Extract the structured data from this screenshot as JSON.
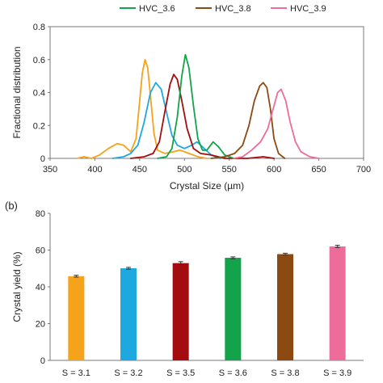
{
  "chart_data": [
    {
      "type": "line",
      "panel_label": "",
      "xlabel": "Crystal Size (µm)",
      "ylabel": "Fractional distribution",
      "xlim": [
        350,
        700
      ],
      "ylim": [
        0,
        0.8
      ],
      "x_ticks": [
        "350",
        "400",
        "450",
        "500",
        "550",
        "600",
        "650",
        "700"
      ],
      "y_ticks": [
        "0",
        "0.2",
        "0.4",
        "0.6",
        "0.8"
      ],
      "legend_position": "top",
      "grid": false,
      "series": [
        {
          "name": "",
          "color": "#f5a31a",
          "points": [
            [
              380,
              0
            ],
            [
              388,
              0.01
            ],
            [
              396,
              0
            ],
            [
              405,
              0.02
            ],
            [
              415,
              0.06
            ],
            [
              425,
              0.09
            ],
            [
              432,
              0.08
            ],
            [
              440,
              0.04
            ],
            [
              446,
              0.12
            ],
            [
              450,
              0.35
            ],
            [
              453,
              0.52
            ],
            [
              456,
              0.6
            ],
            [
              459,
              0.55
            ],
            [
              462,
              0.38
            ],
            [
              466,
              0.15
            ],
            [
              470,
              0.05
            ],
            [
              478,
              0.03
            ],
            [
              488,
              0.04
            ],
            [
              495,
              0.05
            ],
            [
              505,
              0.03
            ],
            [
              515,
              0.01
            ],
            [
              525,
              0
            ]
          ]
        },
        {
          "name": "",
          "color": "#1ea8e0",
          "points": [
            [
              420,
              0
            ],
            [
              432,
              0.01
            ],
            [
              440,
              0.03
            ],
            [
              448,
              0.08
            ],
            [
              455,
              0.22
            ],
            [
              462,
              0.4
            ],
            [
              468,
              0.46
            ],
            [
              474,
              0.42
            ],
            [
              480,
              0.28
            ],
            [
              486,
              0.14
            ],
            [
              492,
              0.08
            ],
            [
              500,
              0.06
            ],
            [
              508,
              0.08
            ],
            [
              514,
              0.1
            ],
            [
              520,
              0.07
            ],
            [
              530,
              0.02
            ],
            [
              540,
              0
            ]
          ]
        },
        {
          "name": "",
          "color": "#a30d10",
          "points": [
            [
              440,
              0
            ],
            [
              455,
              0.01
            ],
            [
              465,
              0.03
            ],
            [
              472,
              0.1
            ],
            [
              478,
              0.28
            ],
            [
              484,
              0.45
            ],
            [
              488,
              0.51
            ],
            [
              492,
              0.48
            ],
            [
              497,
              0.35
            ],
            [
              503,
              0.18
            ],
            [
              510,
              0.06
            ],
            [
              518,
              0.03
            ],
            [
              530,
              0.02
            ],
            [
              545,
              0
            ],
            [
              570,
              0
            ],
            [
              588,
              0.01
            ],
            [
              600,
              0
            ]
          ]
        },
        {
          "name": "HVC_3.6",
          "color": "#13a34a",
          "points": [
            [
              470,
              0
            ],
            [
              480,
              0.01
            ],
            [
              486,
              0.06
            ],
            [
              492,
              0.25
            ],
            [
              497,
              0.5
            ],
            [
              501,
              0.63
            ],
            [
              505,
              0.55
            ],
            [
              510,
              0.32
            ],
            [
              515,
              0.12
            ],
            [
              520,
              0.05
            ],
            [
              525,
              0.05
            ],
            [
              532,
              0.1
            ],
            [
              538,
              0.07
            ],
            [
              545,
              0.02
            ],
            [
              555,
              0
            ]
          ]
        },
        {
          "name": "HVC_3.8",
          "color": "#8c4a12",
          "points": [
            [
              530,
              0
            ],
            [
              545,
              0.01
            ],
            [
              556,
              0.03
            ],
            [
              565,
              0.08
            ],
            [
              572,
              0.2
            ],
            [
              578,
              0.35
            ],
            [
              584,
              0.44
            ],
            [
              588,
              0.46
            ],
            [
              592,
              0.43
            ],
            [
              596,
              0.3
            ],
            [
              600,
              0.12
            ],
            [
              605,
              0.03
            ],
            [
              612,
              0
            ]
          ]
        },
        {
          "name": "HVC_3.9",
          "color": "#ee6c9a",
          "points": [
            [
              555,
              0
            ],
            [
              565,
              0.01
            ],
            [
              575,
              0.05
            ],
            [
              585,
              0.1
            ],
            [
              593,
              0.18
            ],
            [
              599,
              0.3
            ],
            [
              604,
              0.4
            ],
            [
              608,
              0.42
            ],
            [
              613,
              0.35
            ],
            [
              618,
              0.22
            ],
            [
              624,
              0.1
            ],
            [
              630,
              0.04
            ],
            [
              640,
              0.01
            ],
            [
              650,
              0
            ]
          ]
        }
      ]
    },
    {
      "type": "bar",
      "panel_label": "(b)",
      "xlabel": "",
      "ylabel": "Crystal yield (%)",
      "ylim": [
        0,
        80
      ],
      "y_ticks": [
        "0",
        "20",
        "40",
        "60",
        "80"
      ],
      "grid": false,
      "categories": [
        "S = 3.1",
        "S = 3.2",
        "S = 3.5",
        "S = 3.6",
        "S = 3.8",
        "S = 3.9"
      ],
      "values": [
        45.8,
        50.1,
        52.9,
        55.8,
        57.8,
        62.0
      ],
      "errors": [
        0.5,
        0.5,
        0.8,
        0.5,
        0.5,
        0.6
      ],
      "colors": [
        "#f5a31a",
        "#1ea8e0",
        "#a30d10",
        "#13a34a",
        "#8c4a12",
        "#ee6c9a"
      ]
    }
  ]
}
